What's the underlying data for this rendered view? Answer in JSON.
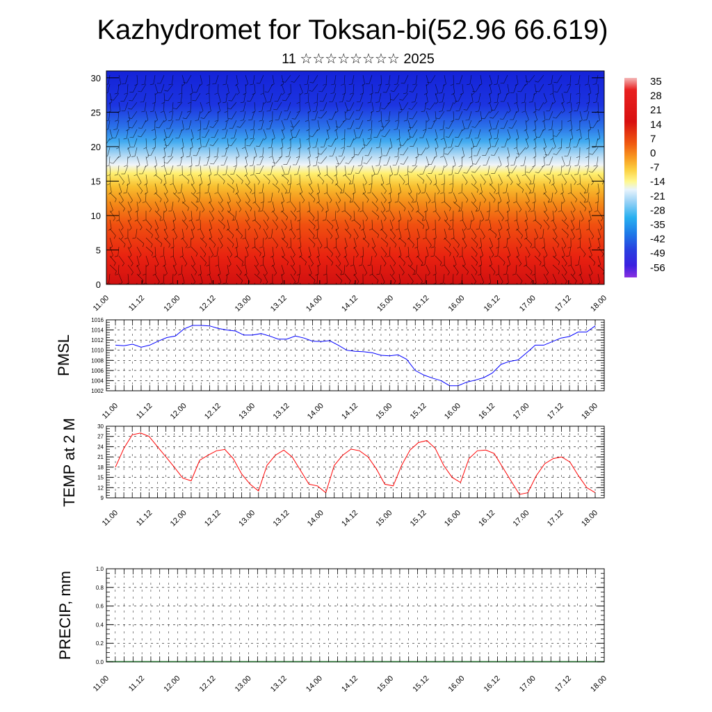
{
  "header": {
    "title": "Kazhydromet for Toksan-bi(52.96 66.619)",
    "subtitle": "11 ☆☆☆☆☆☆☆☆ 2025"
  },
  "time_ticks": [
    "11.00",
    "11.12",
    "12.00",
    "12.12",
    "13.00",
    "13.12",
    "14.00",
    "14.12",
    "15.00",
    "15.12",
    "16.00",
    "16.12",
    "17.00",
    "17.12",
    "18.00"
  ],
  "chart_data": [
    {
      "type": "heatmap",
      "name": "upper-air-section",
      "title": "Kazhydromet for Toksan-bi(52.96 66.619)",
      "x_tick_labels": [
        "11.00",
        "11.12",
        "12.00",
        "12.12",
        "13.00",
        "13.12",
        "14.00",
        "14.12",
        "15.00",
        "15.12",
        "16.00",
        "16.12",
        "17.00",
        "17.12",
        "18.00"
      ],
      "ylim": [
        0,
        31
      ],
      "y_ticks": [
        0,
        5,
        10,
        15,
        20,
        25,
        30
      ],
      "colorbar_labels": [
        "35",
        "28",
        "21",
        "14",
        "7",
        "0",
        "-7",
        "-14",
        "-21",
        "-28",
        "-35",
        "-42",
        "-49",
        "-56"
      ],
      "colors": {
        "warm": "#e01818",
        "mid": "#ffe970",
        "cold": "#1c28e0"
      }
    },
    {
      "type": "line",
      "name": "pmsl",
      "ylabel": "PMSL",
      "ylim": [
        1002,
        1016
      ],
      "y_ticks": [
        1002,
        1004,
        1006,
        1008,
        1010,
        1012,
        1014,
        1016
      ],
      "x_tick_labels": [
        "11.00",
        "11.12",
        "12.00",
        "12.12",
        "13.00",
        "13.12",
        "14.00",
        "14.12",
        "15.00",
        "15.12",
        "16.00",
        "16.12",
        "17.00",
        "17.12",
        "18.00"
      ],
      "line_color": "#0000ff",
      "values": [
        1011.0,
        1010.9,
        1011.2,
        1010.6,
        1011.0,
        1011.8,
        1012.5,
        1012.8,
        1014.2,
        1014.9,
        1014.9,
        1014.8,
        1014.3,
        1014.0,
        1013.8,
        1013.0,
        1013.0,
        1013.3,
        1012.8,
        1012.2,
        1012.2,
        1012.8,
        1012.4,
        1011.8,
        1011.7,
        1011.9,
        1011.0,
        1010.0,
        1009.8,
        1009.7,
        1009.5,
        1009.0,
        1008.9,
        1009.1,
        1008.2,
        1006.0,
        1005.1,
        1004.5,
        1004.0,
        1003.0,
        1003.0,
        1003.7,
        1004.1,
        1004.6,
        1005.5,
        1007.2,
        1007.8,
        1008.1,
        1009.5,
        1011.0,
        1011.0,
        1011.7,
        1012.4,
        1012.7,
        1013.6,
        1013.6,
        1014.8
      ]
    },
    {
      "type": "line",
      "name": "temp-2m",
      "ylabel": "TEMP at 2 M",
      "ylim": [
        9,
        30
      ],
      "y_ticks": [
        9,
        12,
        15,
        18,
        21,
        24,
        27,
        30
      ],
      "x_tick_labels": [
        "11.00",
        "11.12",
        "12.00",
        "12.12",
        "13.00",
        "13.12",
        "14.00",
        "14.12",
        "15.00",
        "15.12",
        "16.00",
        "16.12",
        "17.00",
        "17.12",
        "18.00"
      ],
      "line_color": "#ff0000",
      "values": [
        18.0,
        23.5,
        27.5,
        28.0,
        27.0,
        24.0,
        21.0,
        18.0,
        14.8,
        14.0,
        20.0,
        21.5,
        22.8,
        23.2,
        20.5,
        16.0,
        13.0,
        11.0,
        18.5,
        21.5,
        23.0,
        21.0,
        17.0,
        13.0,
        12.5,
        10.5,
        18.5,
        21.5,
        23.3,
        22.8,
        21.0,
        17.5,
        13.0,
        12.5,
        18.5,
        23.0,
        25.2,
        25.8,
        23.5,
        18.5,
        15.0,
        13.5,
        20.5,
        22.8,
        23.0,
        22.0,
        18.0,
        14.0,
        10.0,
        10.5,
        15.5,
        19.0,
        20.5,
        21.0,
        19.5,
        15.5,
        12.0,
        10.5
      ]
    },
    {
      "type": "bar",
      "name": "precip",
      "ylabel": "PRECIP, mm",
      "ylim": [
        0.0,
        1.0
      ],
      "y_ticks": [
        0.0,
        0.2,
        0.4,
        0.6,
        0.8,
        1.0
      ],
      "x_tick_labels": [
        "11.00",
        "11.12",
        "12.00",
        "12.12",
        "13.00",
        "13.12",
        "14.00",
        "14.12",
        "15.00",
        "15.12",
        "16.00",
        "16.12",
        "17.00",
        "17.12",
        "18.00"
      ],
      "line_color": "#1f6a2a",
      "values": [
        0,
        0,
        0,
        0,
        0,
        0,
        0,
        0,
        0,
        0,
        0,
        0,
        0,
        0,
        0,
        0,
        0,
        0,
        0,
        0,
        0,
        0,
        0,
        0,
        0,
        0,
        0,
        0,
        0,
        0,
        0,
        0,
        0,
        0,
        0,
        0,
        0,
        0,
        0,
        0,
        0,
        0,
        0,
        0,
        0,
        0,
        0,
        0,
        0,
        0,
        0,
        0,
        0,
        0,
        0,
        0,
        0
      ]
    }
  ]
}
